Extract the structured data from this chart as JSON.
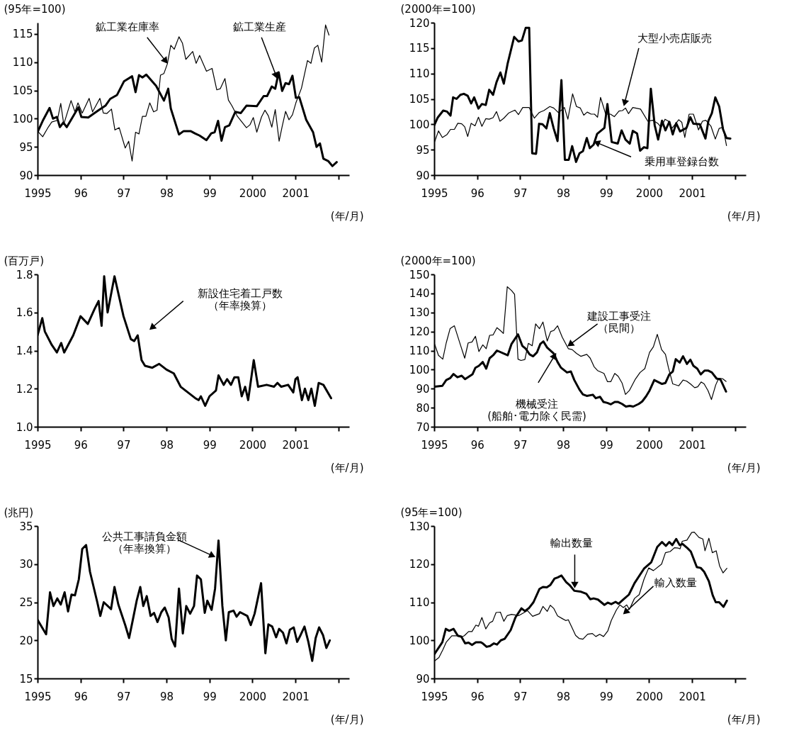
{
  "chart_data": [
    {
      "type": "line",
      "ylabel": "(95年=100)",
      "xlabel": "(年/月)",
      "xlim": [
        1995,
        2002.25
      ],
      "ylim": [
        90,
        117
      ],
      "yticks": [
        90,
        95,
        100,
        105,
        110,
        115
      ],
      "xticks": [
        1995,
        {
          "value": 1996,
          "label": "96"
        },
        {
          "value": 1997,
          "label": "97"
        },
        {
          "value": 1998,
          "label": "98"
        },
        {
          "value": 1999,
          "label": "99"
        },
        2000,
        2001,
        {
          "value": 2002,
          "label": null
        }
      ],
      "series": [
        {
          "name": "鉱工業生産",
          "color": "#000000",
          "x": [
            1995.0,
            1995.12,
            1995.28,
            1995.36,
            1995.45,
            1995.52,
            1995.6,
            1995.68,
            1995.78,
            1995.95,
            1996.02,
            1996.18,
            1996.29,
            1996.42,
            1996.58,
            1996.69,
            1996.85,
            1997.01,
            1997.2,
            1997.28,
            1997.36,
            1997.44,
            1997.53,
            1997.76,
            1997.94,
            1998.04,
            1998.1,
            1998.29,
            1998.4,
            1998.56,
            1998.66,
            1998.77,
            1998.93,
            1999.04,
            1999.12,
            1999.2,
            1999.28,
            1999.36,
            1999.46,
            1999.6,
            1999.73,
            1999.86,
            2000.1,
            2000.26,
            2000.34,
            2000.45,
            2000.53,
            2000.61,
            2000.69,
            2000.77,
            2000.85,
            2000.93,
            2001.01,
            2001.09,
            2001.25,
            2001.41,
            2001.49,
            2001.57,
            2001.65,
            2001.76,
            2001.86,
            2001.96
          ],
          "values": [
            97.6,
            99.6,
            101.9,
            100,
            100.3,
            98.5,
            99.3,
            98.5,
            99.8,
            102,
            100.3,
            100.2,
            100.8,
            101.5,
            102.3,
            103.5,
            104.2,
            106.6,
            107.5,
            104.7,
            107.7,
            107.3,
            107.8,
            105.8,
            103.2,
            105.3,
            101.8,
            97.2,
            97.8,
            97.8,
            97.4,
            97,
            96.2,
            97.4,
            97.6,
            99.6,
            96.1,
            98.5,
            98.8,
            101.2,
            101,
            102.3,
            102.2,
            104,
            104,
            105.7,
            105.3,
            108.2,
            104.9,
            106.3,
            106.1,
            107.6,
            103.7,
            103.8,
            99.8,
            97.6,
            95,
            95.6,
            92.9,
            92.5,
            91.6,
            92.3
          ]
        },
        {
          "name": "鉱工業在庫率",
          "color": "#000000",
          "x": [
            1995.0,
            1995.12,
            1995.25,
            1995.33,
            1995.46,
            1995.54,
            1995.61,
            1995.78,
            1995.87,
            1995.94,
            1996.04,
            1996.2,
            1996.28,
            1996.45,
            1996.53,
            1996.61,
            1996.72,
            1996.8,
            1996.9,
            1997.04,
            1997.12,
            1997.2,
            1997.28,
            1997.36,
            1997.44,
            1997.52,
            1997.61,
            1997.7,
            1997.78,
            1997.86,
            1997.94,
            1998.02,
            1998.1,
            1998.18,
            1998.29,
            1998.37,
            1998.45,
            1998.61,
            1998.69,
            1998.77,
            1998.93,
            1999.06,
            1999.17,
            1999.25,
            1999.36,
            1999.44,
            1999.52,
            1999.65,
            1999.86,
            1999.94,
            2000.02,
            2000.1,
            2000.21,
            2000.29,
            2000.37,
            2000.45,
            2000.53,
            2000.62,
            2000.69,
            2000.77,
            2000.85,
            2000.93,
            2001.01,
            2001.14,
            2001.28,
            2001.36,
            2001.44,
            2001.52,
            2001.61,
            2001.7,
            2001.78
          ],
          "values": [
            97.8,
            96.8,
            98.5,
            99.4,
            99.7,
            102.7,
            99,
            103.2,
            101.2,
            102.8,
            101,
            103.6,
            101.2,
            103.6,
            101,
            100.9,
            101.7,
            98,
            98.4,
            94.8,
            96,
            92.5,
            97.6,
            97.3,
            100.4,
            100.4,
            102.8,
            101.2,
            101.5,
            107.7,
            108,
            109.7,
            113,
            112.3,
            114.5,
            113.4,
            110.5,
            111.9,
            109.8,
            111.2,
            108.4,
            108.9,
            105.1,
            105.3,
            107.1,
            103.3,
            102.3,
            100.4,
            98.4,
            98.9,
            100.2,
            97.6,
            100.3,
            101.5,
            100.5,
            98.5,
            101.6,
            96,
            98.6,
            101.3,
            99.8,
            100.7,
            102.8,
            105.4,
            110.3,
            109.8,
            112.5,
            113,
            110,
            116.6,
            114.8
          ]
        }
      ]
    },
    {
      "type": "line",
      "ylabel": "(2000年=100)",
      "xlabel": "(年/月)",
      "xlim": [
        1995,
        2002.25
      ],
      "ylim": [
        90,
        120
      ],
      "yticks": [
        90,
        95,
        100,
        105,
        110,
        115,
        120
      ],
      "xticks": [
        1995,
        {
          "value": 1996,
          "label": "96"
        },
        {
          "value": 1997,
          "label": "97"
        },
        {
          "value": 1998,
          "label": "98"
        },
        {
          "value": 1999,
          "label": "99"
        },
        2000,
        2001,
        {
          "value": 2002,
          "label": null
        }
      ],
      "series": [
        {
          "name": "乗用車登録台数",
          "color": "#000000",
          "x": [
            1995.0,
            1995.08,
            1995.21,
            1995.3,
            1995.38,
            1995.44,
            1995.52,
            1995.61,
            1995.69,
            1995.78,
            1995.86,
            1995.93,
            1996.03,
            1996.11,
            1996.2,
            1996.28,
            1996.37,
            1996.45,
            1996.54,
            1996.62,
            1996.71,
            1996.86,
            1996.96,
            1997.04,
            1997.13,
            1997.21,
            1997.28,
            1997.37,
            1997.44,
            1997.52,
            1997.61,
            1997.69,
            1997.78,
            1997.87,
            1997.96,
            1998.04,
            1998.13,
            1998.21,
            1998.3,
            1998.38,
            1998.46,
            1998.55,
            1998.62,
            1998.71,
            1998.79,
            1998.96,
            1999.03,
            1999.13,
            1999.27,
            1999.36,
            1999.45,
            1999.55,
            1999.62,
            1999.72,
            1999.79,
            1999.88,
            1999.96,
            2000.04,
            2000.13,
            2000.21,
            2000.3,
            2000.38,
            2000.47,
            2000.55,
            2000.63,
            2000.72,
            2000.87,
            2000.96,
            2001.03,
            2001.18,
            2001.31,
            2001.38,
            2001.46,
            2001.54,
            2001.63,
            2001.72,
            2001.8,
            2001.89
          ],
          "values": [
            99.8,
            101.3,
            102.7,
            102.5,
            101.7,
            105.3,
            105,
            105.8,
            106,
            105.6,
            104.1,
            105.3,
            103.1,
            104,
            103.8,
            106.8,
            105.8,
            108.3,
            110.2,
            108,
            112,
            117.2,
            116.3,
            116.5,
            119,
            119,
            94.3,
            94.2,
            100.1,
            100,
            99.2,
            102.2,
            99.2,
            96.7,
            108.7,
            93,
            93,
            95.7,
            92.6,
            94.3,
            94.7,
            97.3,
            95.3,
            96,
            98.1,
            99.3,
            104,
            96.5,
            96.2,
            98.8,
            97,
            96.2,
            98.7,
            98.2,
            94.8,
            95.5,
            95.3,
            107,
            99.8,
            97,
            100.7,
            98.8,
            100.5,
            98,
            100.2,
            98.6,
            99.3,
            101.4,
            100.1,
            100,
            97.2,
            100.7,
            102.2,
            105.3,
            103.5,
            99,
            97.3,
            97.2
          ]
        },
        {
          "name": "大型小売店販売",
          "color": "#000000",
          "x": [
            1995.0,
            1995.1,
            1995.19,
            1995.3,
            1995.38,
            1995.47,
            1995.55,
            1995.64,
            1995.71,
            1995.78,
            1995.86,
            1995.95,
            1996.03,
            1996.11,
            1996.2,
            1996.28,
            1996.37,
            1996.45,
            1996.53,
            1996.62,
            1996.73,
            1996.88,
            1996.96,
            1997.06,
            1997.21,
            1997.33,
            1997.44,
            1997.55,
            1997.69,
            1997.78,
            1997.89,
            1998.03,
            1998.11,
            1998.22,
            1998.31,
            1998.4,
            1998.48,
            1998.56,
            1998.65,
            1998.73,
            1998.8,
            1998.87,
            1998.99,
            1999.1,
            1999.19,
            1999.3,
            1999.38,
            1999.45,
            1999.52,
            1999.62,
            1999.8,
            1999.97,
            2000.08,
            2000.2,
            2000.28,
            2000.37,
            2000.45,
            2000.53,
            2000.69,
            2000.76,
            2000.83,
            2000.93,
            2001.03,
            2001.15,
            2001.24,
            2001.32,
            2001.44,
            2001.54,
            2001.63,
            2001.72,
            2001.8
          ],
          "values": [
            96.3,
            98.7,
            97.4,
            98,
            99,
            99,
            100.2,
            100.1,
            99.5,
            97.6,
            100.2,
            99.7,
            101.4,
            99.6,
            101.1,
            101,
            101.3,
            102.5,
            100.6,
            101.2,
            102.2,
            102.8,
            101.9,
            103.3,
            103.3,
            101.2,
            102.3,
            102.7,
            103.5,
            103.2,
            102.3,
            103.3,
            101,
            106,
            103.5,
            103.2,
            101.8,
            102.4,
            102,
            102,
            101.4,
            105.3,
            102,
            102,
            101.5,
            102.6,
            102.7,
            103.2,
            102.1,
            103.3,
            103,
            100.6,
            100.8,
            100.2,
            99.4,
            101,
            100.6,
            99.2,
            100.9,
            100.4,
            97.4,
            102,
            102,
            98.9,
            100.6,
            100.8,
            99.6,
            97.1,
            99.2,
            99.4,
            95.8
          ]
        }
      ]
    },
    {
      "type": "line",
      "ylabel": "(百万戸)",
      "xlabel": "(年/月)",
      "xlim": [
        1995,
        2002.25
      ],
      "ylim": [
        1,
        1.8
      ],
      "yticks": [
        {
          "value": 1,
          "label": "1.0"
        },
        1.2,
        1.4,
        1.6,
        1.8
      ],
      "xticks": [
        1995,
        {
          "value": 1996,
          "label": "96"
        },
        {
          "value": 1997,
          "label": "97"
        },
        {
          "value": 1998,
          "label": "98"
        },
        {
          "value": 1999,
          "label": "99"
        },
        2000,
        2001,
        {
          "value": 2002,
          "label": null
        }
      ],
      "series": [
        {
          "name": "新設住宅着工戸数（年率換算）",
          "color": "#000000",
          "x": [
            1995.0,
            1995.11,
            1995.17,
            1995.33,
            1995.45,
            1995.55,
            1995.62,
            1995.83,
            1996.0,
            1996.17,
            1996.33,
            1996.42,
            1996.49,
            1996.55,
            1996.63,
            1996.79,
            1997.0,
            1997.17,
            1997.25,
            1997.33,
            1997.42,
            1997.5,
            1997.67,
            1997.83,
            1998.0,
            1998.17,
            1998.33,
            1998.5,
            1998.67,
            1998.75,
            1998.8,
            1998.9,
            1999.0,
            1999.15,
            1999.21,
            1999.33,
            1999.41,
            1999.5,
            1999.58,
            1999.67,
            1999.75,
            1999.83,
            1999.9,
            2000.03,
            2000.13,
            2000.33,
            2000.5,
            2000.58,
            2000.67,
            2000.83,
            2000.95,
            2001.0,
            2001.05,
            2001.15,
            2001.22,
            2001.3,
            2001.37,
            2001.45,
            2001.54,
            2001.65,
            2001.83
          ],
          "values": [
            1.48,
            1.57,
            1.5,
            1.43,
            1.39,
            1.44,
            1.39,
            1.48,
            1.58,
            1.54,
            1.62,
            1.66,
            1.53,
            1.79,
            1.6,
            1.79,
            1.58,
            1.46,
            1.45,
            1.48,
            1.35,
            1.32,
            1.31,
            1.33,
            1.3,
            1.28,
            1.21,
            1.18,
            1.15,
            1.14,
            1.16,
            1.11,
            1.16,
            1.19,
            1.27,
            1.22,
            1.25,
            1.22,
            1.26,
            1.26,
            1.16,
            1.21,
            1.14,
            1.35,
            1.21,
            1.22,
            1.21,
            1.23,
            1.21,
            1.22,
            1.18,
            1.25,
            1.26,
            1.14,
            1.2,
            1.14,
            1.2,
            1.11,
            1.23,
            1.22,
            1.15
          ]
        }
      ]
    },
    {
      "type": "line",
      "ylabel": "(2000年=100)",
      "xlabel": "(年/月)",
      "xlim": [
        1995,
        2002.25
      ],
      "ylim": [
        70,
        150
      ],
      "yticks": [
        70,
        80,
        90,
        100,
        110,
        120,
        130,
        140,
        150
      ],
      "xticks": [
        1995,
        {
          "value": 1996,
          "label": "96"
        },
        {
          "value": 1997,
          "label": "97"
        },
        {
          "value": 1998,
          "label": "98"
        },
        {
          "value": 1999,
          "label": "99"
        },
        2000,
        2001,
        {
          "value": 2002,
          "label": null
        }
      ],
      "series": [
        {
          "name": "機械受注(船舶･電力除く民需)",
          "color": "#000000",
          "x": [
            1995.0,
            1995.19,
            1995.28,
            1995.37,
            1995.45,
            1995.54,
            1995.64,
            1995.72,
            1995.89,
            1995.96,
            1996.04,
            1996.13,
            1996.21,
            1996.29,
            1996.37,
            1996.46,
            1996.71,
            1996.8,
            1996.95,
            1997.05,
            1997.13,
            1997.22,
            1997.3,
            1997.39,
            1997.47,
            1997.54,
            1997.63,
            1997.78,
            1997.87,
            1997.95,
            1998.09,
            1998.18,
            1998.26,
            1998.38,
            1998.46,
            1998.55,
            1998.69,
            1998.76,
            1998.86,
            1998.94,
            1999.03,
            1999.11,
            1999.2,
            1999.28,
            1999.37,
            1999.46,
            1999.55,
            1999.63,
            1999.76,
            1999.84,
            1999.93,
            2000.01,
            2000.12,
            2000.21,
            2000.3,
            2000.38,
            2000.47,
            2000.55,
            2000.62,
            2000.71,
            2000.79,
            2000.88,
            2000.96,
            2001.03,
            2001.12,
            2001.2,
            2001.29,
            2001.37,
            2001.46,
            2001.57,
            2001.66,
            2001.79
          ],
          "values": [
            91,
            91.5,
            94.5,
            95.5,
            97.7,
            96,
            96.8,
            95,
            97.5,
            101,
            102,
            104,
            100.5,
            106,
            107.5,
            110,
            107.5,
            113.5,
            118.5,
            112.5,
            111,
            108,
            107,
            109,
            113.5,
            114.8,
            111.5,
            108.5,
            104,
            101,
            98.5,
            99,
            94.5,
            89.5,
            87,
            86.2,
            86.8,
            85,
            85.7,
            83,
            82.5,
            81.8,
            83,
            83,
            82,
            80.6,
            81,
            80.6,
            82,
            83.3,
            86,
            89,
            94.5,
            93.5,
            92.5,
            93,
            97.5,
            99,
            105.5,
            103.7,
            107,
            103,
            105.2,
            102,
            100.5,
            97.5,
            99.5,
            99.5,
            98.5,
            95.3,
            94.8,
            88.5
          ]
        },
        {
          "name": "建設工事受注（民間）",
          "color": "#000000",
          "x": [
            1995.0,
            1995.1,
            1995.2,
            1995.28,
            1995.37,
            1995.47,
            1995.61,
            1995.71,
            1995.79,
            1995.88,
            1995.96,
            1996.04,
            1996.13,
            1996.21,
            1996.29,
            1996.37,
            1996.46,
            1996.54,
            1996.61,
            1996.7,
            1996.8,
            1996.87,
            1996.95,
            1997.02,
            1997.11,
            1997.19,
            1997.28,
            1997.36,
            1997.45,
            1997.53,
            1997.63,
            1997.71,
            1997.78,
            1997.87,
            1997.98,
            1998.12,
            1998.21,
            1998.31,
            1998.41,
            1998.55,
            1998.63,
            1998.72,
            1998.8,
            1998.95,
            1999.03,
            1999.11,
            1999.2,
            1999.28,
            1999.37,
            1999.45,
            1999.54,
            1999.68,
            1999.79,
            1999.9,
            2000.01,
            2000.1,
            2000.19,
            2000.29,
            2000.38,
            2000.45,
            2000.55,
            2000.69,
            2000.79,
            2000.87,
            2000.96,
            2001.06,
            2001.13,
            2001.21,
            2001.28,
            2001.37,
            2001.45,
            2001.55,
            2001.62,
            2001.71,
            2001.79
          ],
          "values": [
            114,
            107.5,
            105.5,
            114,
            121.5,
            123,
            113,
            106,
            114,
            114.5,
            117.5,
            109.5,
            113,
            111,
            118,
            118.2,
            122,
            120.5,
            119,
            143.5,
            141.5,
            139.5,
            105.5,
            104.8,
            105.3,
            113.8,
            112.5,
            124,
            121.5,
            125,
            115,
            120,
            120.5,
            123,
            117,
            111,
            110.5,
            108.5,
            107,
            108,
            106,
            101.5,
            99.5,
            98,
            93.7,
            93.7,
            98,
            96.5,
            93,
            87,
            89,
            95,
            98.5,
            100.5,
            109,
            112,
            118.5,
            110.5,
            108,
            101,
            92.5,
            91.5,
            94.5,
            94,
            92.5,
            90.5,
            91,
            93.5,
            92.5,
            89,
            84.3,
            92,
            95.5,
            95.2,
            93.8
          ]
        }
      ]
    },
    {
      "type": "line",
      "ylabel": "(兆円)",
      "xlabel": "(年/月)",
      "xlim": [
        1995,
        2002.25
      ],
      "ylim": [
        15,
        35
      ],
      "yticks": [
        15,
        20,
        25,
        30,
        35
      ],
      "xticks": [
        1995,
        {
          "value": 1996,
          "label": "96"
        },
        {
          "value": 1997,
          "label": "97"
        },
        {
          "value": 1998,
          "label": "98"
        },
        {
          "value": 1999,
          "label": "99"
        },
        2000,
        2001,
        {
          "value": 2002,
          "label": null
        }
      ],
      "series": [
        {
          "name": "公共工事請負金額（年率換算）",
          "color": "#000000",
          "x": [
            1995.0,
            1995.2,
            1995.29,
            1995.37,
            1995.46,
            1995.54,
            1995.63,
            1995.71,
            1995.79,
            1995.87,
            1995.96,
            1996.04,
            1996.13,
            1996.22,
            1996.39,
            1996.46,
            1996.54,
            1996.71,
            1996.79,
            1996.88,
            1997.04,
            1997.13,
            1997.21,
            1997.31,
            1997.39,
            1997.46,
            1997.54,
            1997.63,
            1997.71,
            1997.79,
            1997.88,
            1997.96,
            1998.05,
            1998.12,
            1998.2,
            1998.29,
            1998.38,
            1998.46,
            1998.55,
            1998.64,
            1998.71,
            1998.8,
            1998.89,
            1998.95,
            1999.05,
            1999.13,
            1999.21,
            1999.3,
            1999.38,
            1999.45,
            1999.56,
            1999.63,
            1999.71,
            1999.88,
            1999.96,
            2000.05,
            2000.2,
            2000.3,
            2000.37,
            2000.46,
            2000.55,
            2000.62,
            2000.71,
            2000.79,
            2000.87,
            2000.96,
            2001.04,
            2001.12,
            2001.21,
            2001.3,
            2001.39,
            2001.47,
            2001.55,
            2001.64,
            2001.72,
            2001.8
          ],
          "values": [
            22.7,
            20.8,
            26.3,
            24.5,
            25.5,
            24.7,
            26.3,
            23.8,
            26,
            25.9,
            28,
            32,
            32.5,
            29,
            25,
            23.2,
            25,
            24.1,
            27,
            24.7,
            22,
            20.3,
            22.5,
            25.3,
            27,
            24.5,
            25.8,
            23.2,
            23.6,
            22.4,
            23.7,
            24.3,
            23,
            20.2,
            19.2,
            26.8,
            20.9,
            24.5,
            23.5,
            24.5,
            28.5,
            28,
            23.6,
            25.2,
            24,
            26.8,
            33.1,
            24.5,
            20,
            23.7,
            23.9,
            23.1,
            23.7,
            23.2,
            22,
            23.5,
            27.5,
            18.3,
            22.1,
            21.8,
            20.4,
            21.5,
            21,
            19.6,
            21.4,
            21.7,
            19.8,
            20.7,
            21.8,
            19.8,
            17.3,
            20.3,
            21.7,
            20.7,
            19,
            20
          ]
        }
      ]
    },
    {
      "type": "line",
      "ylabel": "(95年=100)",
      "xlabel": "(年/月)",
      "xlim": [
        1995,
        2002.25
      ],
      "ylim": [
        90,
        130
      ],
      "yticks": [
        90,
        100,
        110,
        120,
        130
      ],
      "xticks": [
        1995,
        {
          "value": 1996,
          "label": "96"
        },
        {
          "value": 1997,
          "label": "97"
        },
        {
          "value": 1998,
          "label": "98"
        },
        {
          "value": 1999,
          "label": "99"
        },
        2000,
        2001,
        {
          "value": 2002,
          "label": null
        }
      ],
      "series": [
        {
          "name": "輸出数量",
          "color": "#000000",
          "x": [
            1995.0,
            1995.19,
            1995.27,
            1995.35,
            1995.45,
            1995.55,
            1995.63,
            1995.72,
            1995.8,
            1995.88,
            1995.97,
            1996.08,
            1996.13,
            1996.22,
            1996.3,
            1996.39,
            1996.46,
            1996.55,
            1996.64,
            1996.78,
            1996.89,
            1997.03,
            1997.11,
            1997.2,
            1997.31,
            1997.45,
            1997.53,
            1997.62,
            1997.7,
            1997.8,
            1997.87,
            1997.96,
            1998.07,
            1998.15,
            1998.26,
            1998.4,
            1998.54,
            1998.63,
            1998.71,
            1998.81,
            1998.96,
            1999.04,
            1999.12,
            1999.22,
            1999.29,
            1999.4,
            1999.53,
            1999.66,
            1999.88,
            2000.05,
            2000.19,
            2000.3,
            2000.39,
            2000.47,
            2000.54,
            2000.63,
            2000.71,
            2000.78,
            2000.89,
            2000.97,
            2001.11,
            2001.2,
            2001.28,
            2001.39,
            2001.48,
            2001.55,
            2001.63,
            2001.73,
            2001.81
          ],
          "values": [
            96.3,
            99.5,
            103,
            102.5,
            103,
            101.2,
            101,
            99.2,
            99.4,
            98.8,
            99.5,
            99.5,
            99.2,
            98.3,
            98.5,
            99.2,
            98.9,
            100,
            100.4,
            102.7,
            106,
            108.4,
            107.7,
            108.4,
            110,
            113.5,
            114,
            113.9,
            114.5,
            116.2,
            116.5,
            117,
            115.3,
            114.5,
            113,
            112.8,
            112.2,
            110.8,
            111,
            110.7,
            109.3,
            109.9,
            109.5,
            110.1,
            109.6,
            110.7,
            112,
            115,
            118.8,
            120.5,
            124.5,
            125.8,
            124.8,
            125.8,
            125,
            126.6,
            125,
            125.3,
            124.2,
            123.3,
            119.2,
            119,
            118,
            115.5,
            111.8,
            110,
            110,
            108.8,
            110.4
          ]
        },
        {
          "name": "輸入数量",
          "color": "#000000",
          "x": [
            1995.0,
            1995.11,
            1995.2,
            1995.28,
            1995.41,
            1995.52,
            1995.62,
            1995.7,
            1995.8,
            1995.88,
            1995.97,
            1996.03,
            1996.11,
            1996.2,
            1996.29,
            1996.36,
            1996.44,
            1996.54,
            1996.62,
            1996.7,
            1996.8,
            1996.97,
            1997.08,
            1997.17,
            1997.29,
            1997.45,
            1997.53,
            1997.63,
            1997.7,
            1997.78,
            1997.87,
            1997.98,
            1998.06,
            1998.12,
            1998.2,
            1998.29,
            1998.37,
            1998.46,
            1998.57,
            1998.68,
            1998.76,
            1998.85,
            1998.94,
            1999.04,
            1999.12,
            1999.24,
            1999.32,
            1999.4,
            1999.48,
            1999.54,
            1999.66,
            1999.77,
            1999.88,
            1999.99,
            2000.1,
            2000.29,
            2000.38,
            2000.49,
            2000.59,
            2000.68,
            2000.72,
            2000.77,
            2000.88,
            2000.99,
            2001.05,
            2001.16,
            2001.25,
            2001.3,
            2001.39,
            2001.47,
            2001.56,
            2001.64,
            2001.72,
            2001.81
          ],
          "values": [
            94.5,
            95.5,
            97.5,
            99.5,
            101.2,
            101.2,
            100.8,
            101.2,
            102.3,
            102.3,
            104,
            103.7,
            106,
            103,
            104.6,
            105,
            107.3,
            107.4,
            105,
            106.5,
            106.8,
            106.5,
            107.2,
            107.8,
            106.3,
            107,
            108.9,
            107.6,
            109.2,
            108.4,
            106.4,
            105.7,
            105.2,
            105.4,
            103.5,
            101.3,
            100.5,
            100.3,
            101.6,
            101.8,
            101,
            101.6,
            101,
            102.5,
            105.2,
            108,
            109.3,
            108.6,
            109.3,
            108.1,
            111,
            112,
            116,
            119,
            118.3,
            120,
            123,
            123.3,
            124.3,
            124.2,
            124,
            126,
            126.3,
            128.3,
            128.4,
            127,
            126.6,
            123.5,
            126.8,
            123,
            123.5,
            119.5,
            117.7,
            118.9
          ]
        }
      ]
    }
  ]
}
